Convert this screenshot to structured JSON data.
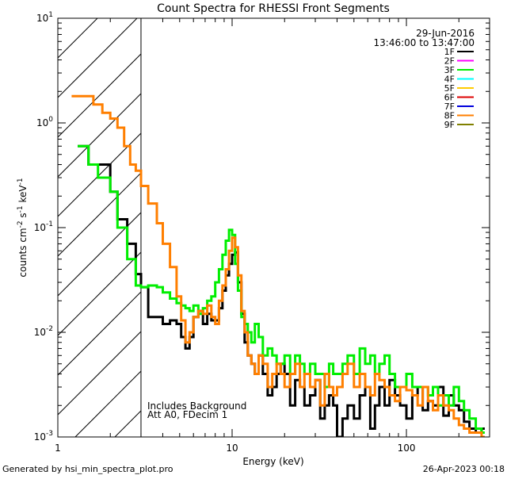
{
  "chart_data": {
    "type": "line",
    "title": "Count Spectra for RHESSI Front Segments",
    "xlabel": "Energy (keV)",
    "ylabel_main": "counts cm",
    "ylabel_exp1": "-2",
    "ylabel_mid": " s",
    "ylabel_exp2": "-1",
    "ylabel_end": " keV",
    "ylabel_exp3": "-1",
    "x_scale": "log",
    "y_scale": "log",
    "xlim": [
      1,
      300
    ],
    "ylim": [
      0.001,
      10
    ],
    "x_ticks": [
      {
        "value": 1,
        "label": "1"
      },
      {
        "value": 10,
        "label": "10"
      },
      {
        "value": 100,
        "label": "100"
      }
    ],
    "y_ticks": [
      {
        "value": 0.001,
        "base": "10",
        "exp": "-3"
      },
      {
        "value": 0.01,
        "base": "10",
        "exp": "-2"
      },
      {
        "value": 0.1,
        "base": "10",
        "exp": "-1"
      },
      {
        "value": 1,
        "base": "10",
        "exp": "0"
      },
      {
        "value": 10,
        "base": "10",
        "exp": "1"
      }
    ],
    "shaded_region": {
      "x_from": 1,
      "x_to": 3,
      "style": "hatched"
    },
    "date": "29-Jun-2016",
    "time_range": "13:46:00 to 13:47:00",
    "legend_position": "top-right",
    "legend": [
      {
        "name": "1F",
        "color": "#000000"
      },
      {
        "name": "2F",
        "color": "#ff00ff"
      },
      {
        "name": "3F",
        "color": "#00ee00"
      },
      {
        "name": "4F",
        "color": "#00ffff"
      },
      {
        "name": "5F",
        "color": "#ffcc00"
      },
      {
        "name": "6F",
        "color": "#dd0000"
      },
      {
        "name": "7F",
        "color": "#0000dd"
      },
      {
        "name": "8F",
        "color": "#ff7f00"
      },
      {
        "name": "9F",
        "color": "#808000"
      }
    ],
    "annotations": [
      "Includes Background",
      "Att A0, FDecim 1"
    ],
    "series": [
      {
        "name": "1F",
        "color": "#000000",
        "x": [
          1.3,
          1.5,
          1.7,
          2.0,
          2.2,
          2.5,
          2.8,
          3.0,
          3.3,
          3.7,
          4.0,
          4.4,
          4.8,
          5.1,
          5.4,
          5.7,
          6.0,
          6.4,
          6.8,
          7.2,
          7.6,
          8.0,
          8.4,
          8.8,
          9.2,
          9.6,
          10.0,
          10.4,
          10.8,
          11.3,
          11.8,
          12.3,
          12.9,
          13.5,
          14.2,
          15.0,
          16.0,
          17.0,
          18.0,
          19.0,
          20.0,
          21.5,
          23.0,
          24.5,
          26.0,
          28.0,
          30.0,
          32.0,
          34.0,
          36.0,
          38.0,
          40.0,
          43.0,
          46.0,
          50.0,
          54.0,
          58.0,
          62.0,
          66.0,
          70.0,
          75.0,
          80.0,
          86.0,
          92.0,
          100.0,
          108.0,
          116.0,
          124.0,
          133.0,
          142.0,
          152.0,
          163.0,
          175.0,
          187.0,
          200.0,
          214.0,
          230.0,
          250.0,
          270.0
        ],
        "y": [
          0.6,
          0.4,
          0.4,
          0.22,
          0.12,
          0.07,
          0.036,
          0.027,
          0.014,
          0.014,
          0.012,
          0.013,
          0.012,
          0.009,
          0.007,
          0.009,
          0.014,
          0.016,
          0.012,
          0.015,
          0.013,
          0.013,
          0.017,
          0.025,
          0.035,
          0.045,
          0.055,
          0.058,
          0.03,
          0.015,
          0.008,
          0.006,
          0.005,
          0.004,
          0.006,
          0.004,
          0.0025,
          0.003,
          0.004,
          0.005,
          0.004,
          0.002,
          0.0035,
          0.003,
          0.002,
          0.0025,
          0.0035,
          0.0015,
          0.002,
          0.0025,
          0.002,
          0.001,
          0.0015,
          0.002,
          0.0015,
          0.0025,
          0.003,
          0.0012,
          0.002,
          0.003,
          0.002,
          0.0035,
          0.0025,
          0.002,
          0.0015,
          0.0025,
          0.003,
          0.0018,
          0.0022,
          0.002,
          0.003,
          0.0016,
          0.0025,
          0.002,
          0.0018,
          0.0014,
          0.0012,
          0.0011,
          0.0012
        ]
      },
      {
        "name": "3F",
        "color": "#00ee00",
        "x": [
          1.3,
          1.5,
          1.7,
          2.0,
          2.2,
          2.5,
          2.8,
          3.0,
          3.3,
          3.7,
          4.0,
          4.4,
          4.8,
          5.1,
          5.4,
          5.7,
          6.0,
          6.4,
          6.8,
          7.2,
          7.6,
          8.0,
          8.4,
          8.8,
          9.2,
          9.6,
          10.0,
          10.4,
          10.8,
          11.3,
          11.8,
          12.3,
          12.9,
          13.5,
          14.2,
          15.0,
          16.0,
          17.0,
          18.0,
          19.0,
          20.0,
          21.5,
          23.0,
          24.5,
          26.0,
          28.0,
          30.0,
          32.0,
          34.0,
          36.0,
          38.0,
          40.0,
          43.0,
          46.0,
          50.0,
          54.0,
          58.0,
          62.0,
          66.0,
          70.0,
          75.0,
          80.0,
          86.0,
          92.0,
          100.0,
          108.0,
          116.0,
          124.0,
          133.0,
          142.0,
          152.0,
          163.0,
          175.0,
          187.0,
          200.0,
          214.0,
          230.0,
          250.0,
          270.0
        ],
        "y": [
          0.6,
          0.4,
          0.3,
          0.22,
          0.1,
          0.05,
          0.028,
          0.027,
          0.028,
          0.027,
          0.024,
          0.021,
          0.019,
          0.018,
          0.017,
          0.016,
          0.018,
          0.015,
          0.017,
          0.02,
          0.022,
          0.03,
          0.04,
          0.055,
          0.075,
          0.095,
          0.085,
          0.045,
          0.025,
          0.014,
          0.012,
          0.01,
          0.008,
          0.012,
          0.009,
          0.006,
          0.007,
          0.006,
          0.005,
          0.005,
          0.006,
          0.004,
          0.006,
          0.005,
          0.004,
          0.005,
          0.004,
          0.004,
          0.003,
          0.005,
          0.004,
          0.004,
          0.005,
          0.006,
          0.004,
          0.007,
          0.005,
          0.006,
          0.004,
          0.005,
          0.006,
          0.004,
          0.003,
          0.003,
          0.004,
          0.003,
          0.003,
          0.003,
          0.0025,
          0.003,
          0.002,
          0.0025,
          0.002,
          0.003,
          0.0022,
          0.0018,
          0.0015,
          0.0012,
          0.0011
        ]
      },
      {
        "name": "8F",
        "color": "#ff7f00",
        "x": [
          1.2,
          1.4,
          1.6,
          1.8,
          2.0,
          2.2,
          2.4,
          2.6,
          2.8,
          3.0,
          3.3,
          3.7,
          4.0,
          4.4,
          4.8,
          5.1,
          5.4,
          5.7,
          6.0,
          6.4,
          6.8,
          7.2,
          7.6,
          8.0,
          8.4,
          8.8,
          9.2,
          9.6,
          10.0,
          10.4,
          10.8,
          11.3,
          11.8,
          12.3,
          12.9,
          13.5,
          14.2,
          15.0,
          16.0,
          17.0,
          18.0,
          19.0,
          20.0,
          21.5,
          23.0,
          24.5,
          26.0,
          28.0,
          30.0,
          32.0,
          34.0,
          36.0,
          38.0,
          40.0,
          43.0,
          46.0,
          50.0,
          54.0,
          58.0,
          62.0,
          66.0,
          70.0,
          75.0,
          80.0,
          86.0,
          92.0,
          100.0,
          108.0,
          116.0,
          124.0,
          133.0,
          142.0,
          152.0,
          163.0,
          175.0,
          187.0,
          200.0,
          214.0,
          230.0,
          250.0,
          270.0
        ],
        "y": [
          1.8,
          1.8,
          1.5,
          1.25,
          1.1,
          0.9,
          0.6,
          0.4,
          0.35,
          0.25,
          0.17,
          0.11,
          0.07,
          0.042,
          0.022,
          0.013,
          0.008,
          0.01,
          0.014,
          0.016,
          0.015,
          0.018,
          0.014,
          0.012,
          0.02,
          0.028,
          0.04,
          0.06,
          0.08,
          0.065,
          0.035,
          0.016,
          0.01,
          0.006,
          0.005,
          0.004,
          0.006,
          0.005,
          0.003,
          0.004,
          0.005,
          0.004,
          0.003,
          0.004,
          0.005,
          0.003,
          0.004,
          0.003,
          0.0035,
          0.002,
          0.004,
          0.003,
          0.0025,
          0.003,
          0.004,
          0.005,
          0.003,
          0.004,
          0.003,
          0.0025,
          0.004,
          0.0035,
          0.003,
          0.0025,
          0.0022,
          0.003,
          0.0028,
          0.0025,
          0.002,
          0.003,
          0.0022,
          0.0018,
          0.0025,
          0.002,
          0.0018,
          0.0015,
          0.0013,
          0.0012,
          0.0011,
          0.0011,
          0.001
        ]
      }
    ]
  },
  "footer": {
    "generated_by": "Generated by hsi_min_spectra_plot.pro",
    "timestamp": "26-Apr-2023 00:18"
  }
}
